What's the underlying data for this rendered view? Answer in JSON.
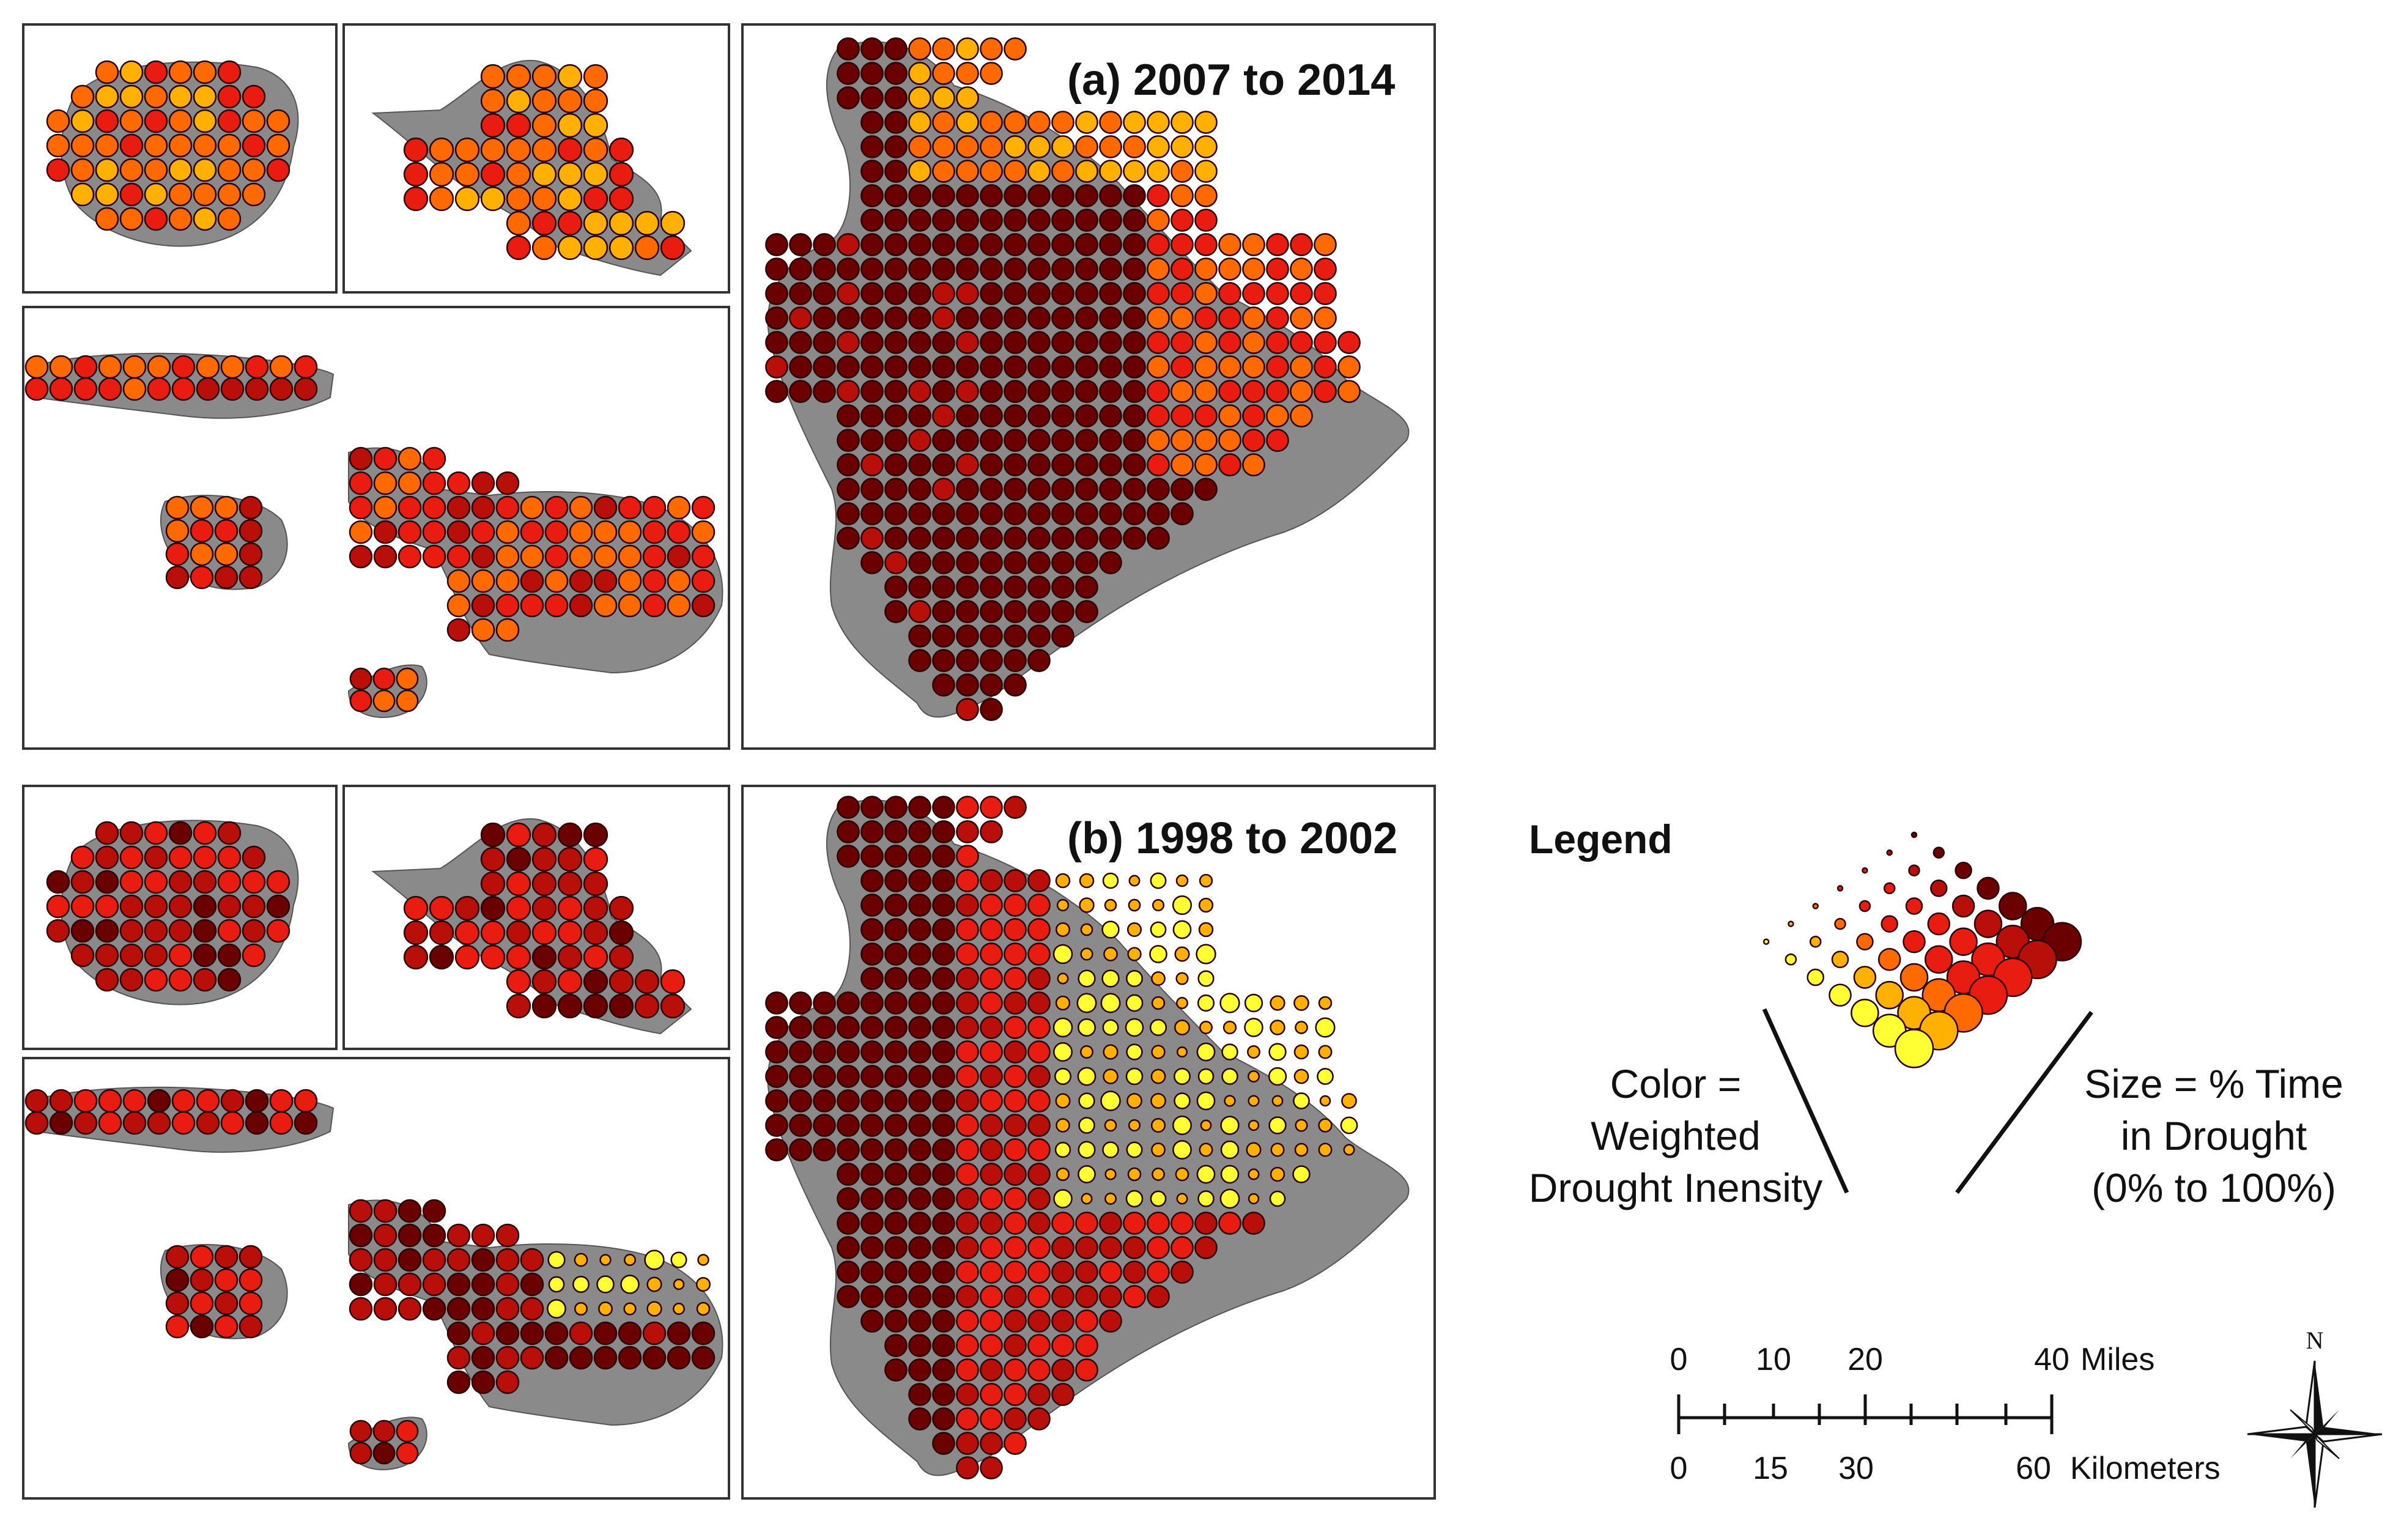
{
  "panels": {
    "a": {
      "title": "(a) 2007 to 2014"
    },
    "b": {
      "title": "(b) 1998 to 2002"
    }
  },
  "legend": {
    "title": "Legend",
    "color_lines": [
      "Color =",
      "Weighted",
      "Drought Inensity"
    ],
    "size_lines": [
      "Size = % Time",
      "in Drought",
      "(0% to 100%)"
    ]
  },
  "scale_bar": {
    "miles_ticks": [
      "0",
      "10",
      "20",
      "40"
    ],
    "miles_unit": "Miles",
    "km_ticks": [
      "0",
      "15",
      "30",
      "60"
    ],
    "km_unit": "Kilometers"
  },
  "north_arrow": {
    "label": "N"
  },
  "palette": {
    "intensity_low": "#ffff33",
    "intensity_mid_low": "#ffb000",
    "intensity_mid": "#ff6a00",
    "intensity_mid_high": "#e81c10",
    "intensity_high": "#b80f0a",
    "intensity_max": "#6b0000",
    "land": "#8a8a8a"
  }
}
